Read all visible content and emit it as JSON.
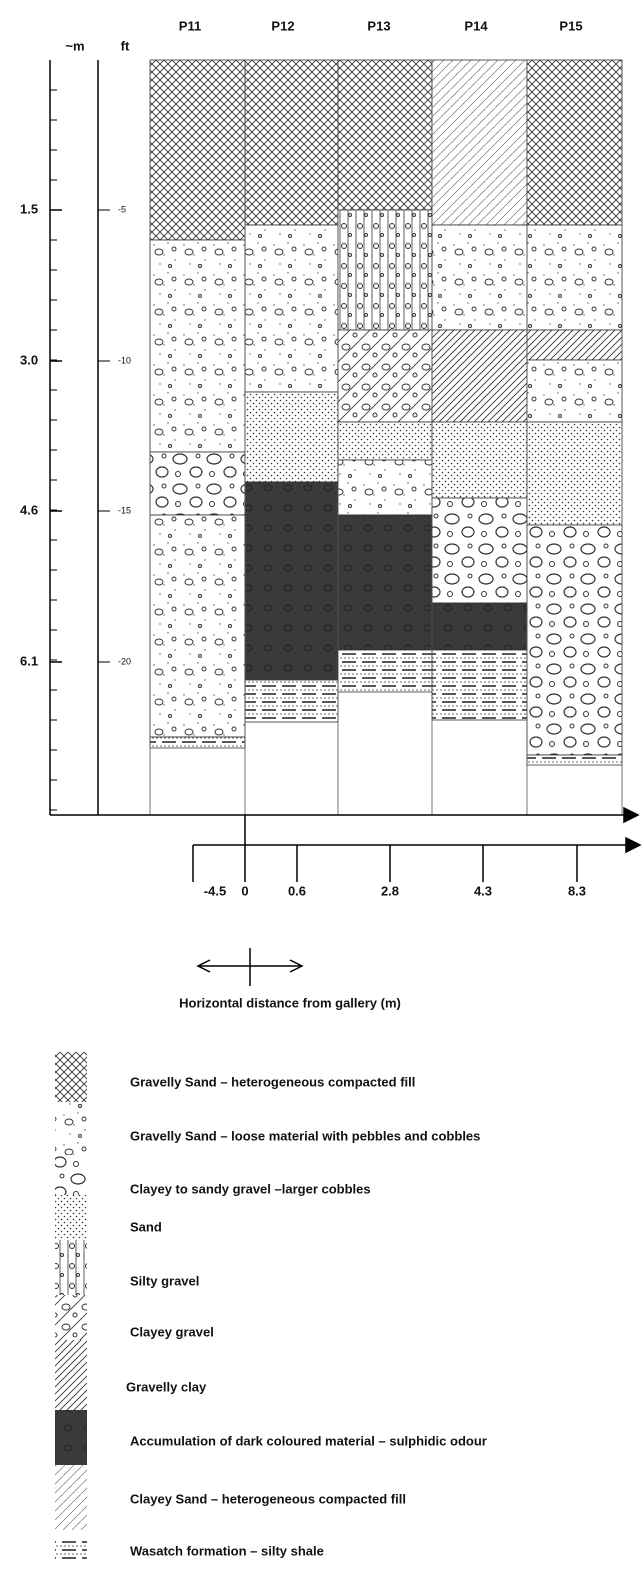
{
  "header": {
    "columns": [
      "P11",
      "P12",
      "P13",
      "P14",
      "P15"
    ],
    "m_label": "~m",
    "ft_label": "ft"
  },
  "depth_m": [
    "1.5",
    "3.0",
    "4.6",
    "6.1"
  ],
  "depth_ft": [
    "-5",
    "-10",
    "-15",
    "-20"
  ],
  "distance": {
    "labels": [
      "-4.5",
      "0",
      "0.6",
      "2.8",
      "4.3",
      "8.3"
    ],
    "title": "Horizontal distance from gallery (m)"
  },
  "legend": [
    "Gravelly Sand – heterogeneous compacted fill",
    "Gravelly Sand – loose  material with pebbles and cobbles",
    "Clayey to sandy gravel –larger cobbles",
    "Sand",
    "Silty gravel",
    "Clayey gravel",
    "Gravelly clay",
    "Accumulation of dark coloured material – sulphidic odour",
    "Clayey Sand – heterogeneous compacted fill",
    "Wasatch formation – silty shale"
  ]
}
